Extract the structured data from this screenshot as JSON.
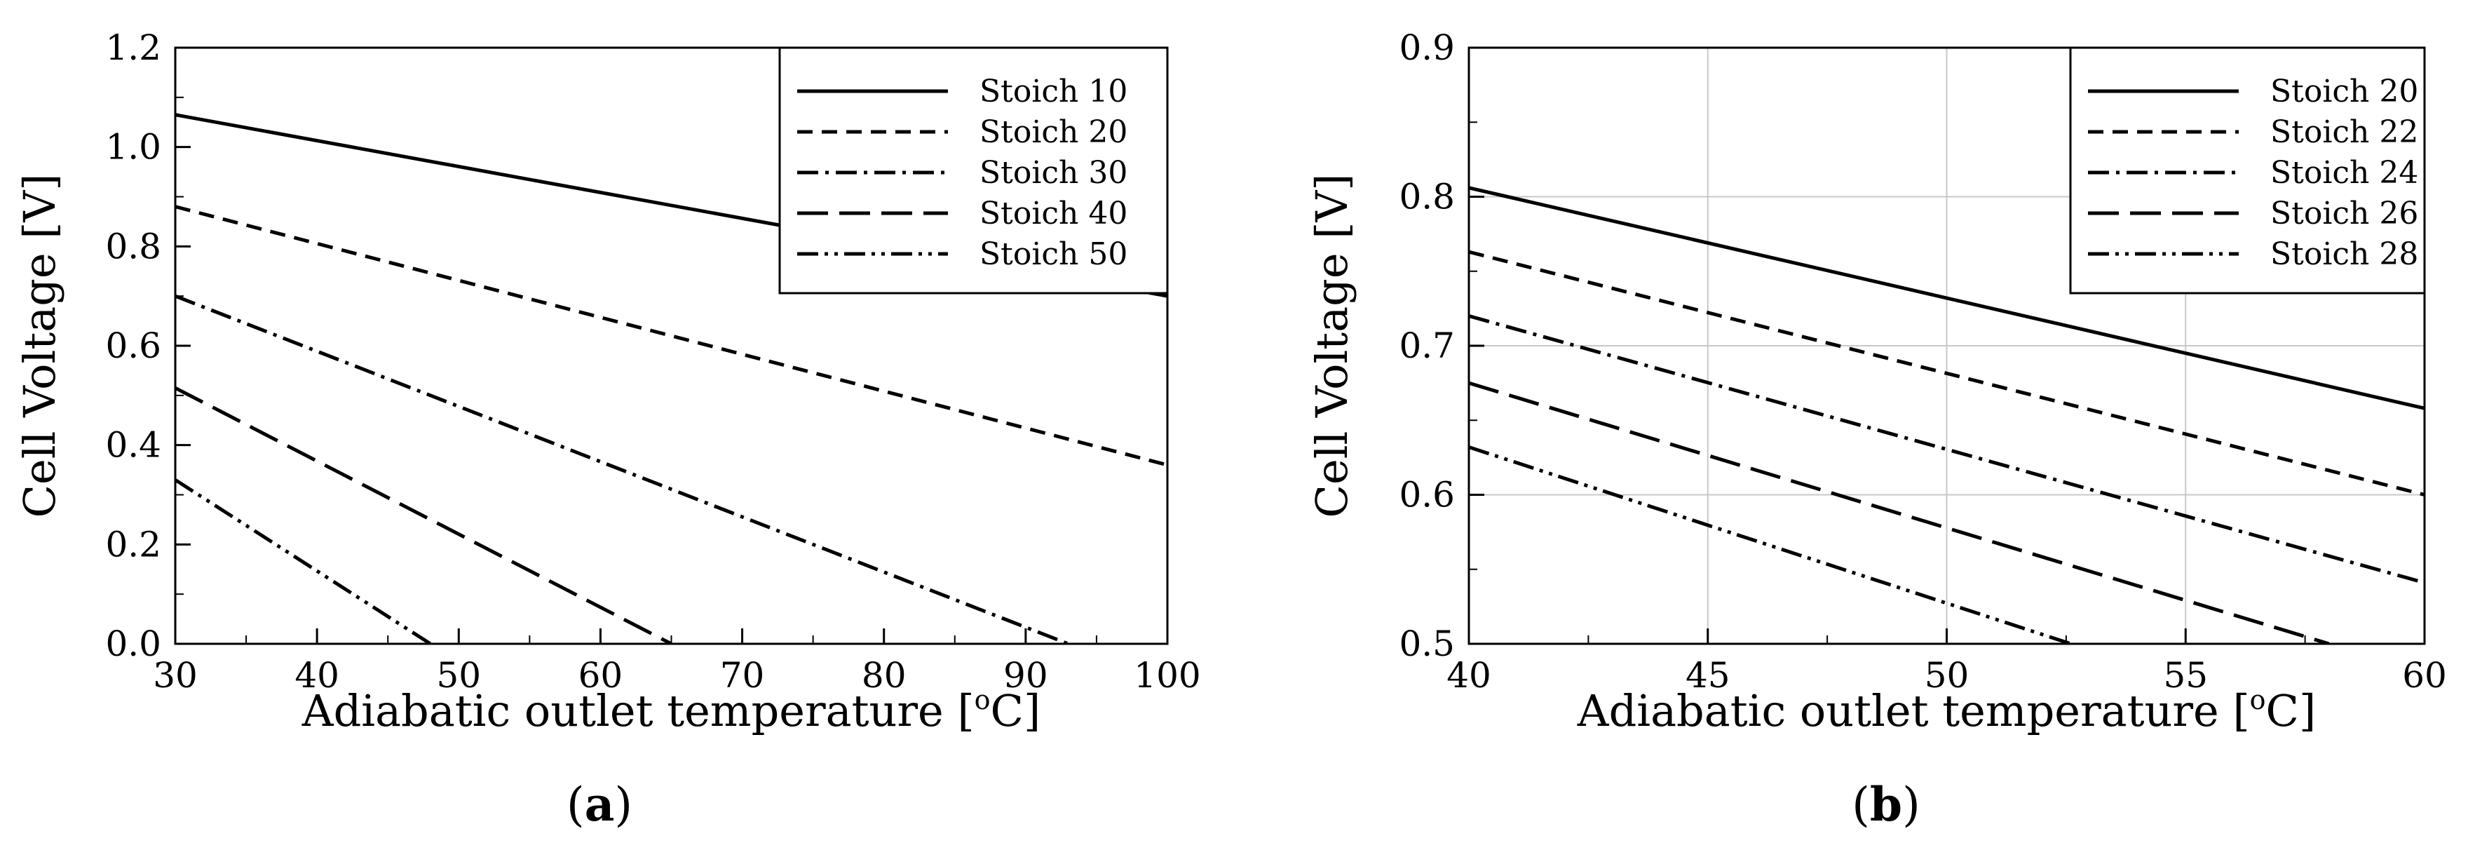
{
  "chart_data": [
    {
      "type": "line",
      "panel_label": "a",
      "xlabel": "Adiabatic outlet temperature [",
      "xunit_sup": "o",
      "xunit_tail": "C]",
      "ylabel": "Cell Voltage [V]",
      "xlim": [
        30,
        100
      ],
      "ylim": [
        0,
        1.2
      ],
      "xticks": [
        30,
        40,
        50,
        60,
        70,
        80,
        90,
        100
      ],
      "yticks": [
        0,
        0.2,
        0.4,
        0.6,
        0.8,
        1.0,
        1.2
      ],
      "ytick_labels": [
        "0.0",
        "0.2",
        "0.4",
        "0.6",
        "0.8",
        "1.0",
        "1.2"
      ],
      "grid": false,
      "legend_position": "top-right",
      "series": [
        {
          "name": "Stoich 10",
          "style": "solid",
          "x": [
            30,
            100
          ],
          "y": [
            1.065,
            0.7
          ]
        },
        {
          "name": "Stoich 20",
          "style": "dashed",
          "x": [
            30,
            100
          ],
          "y": [
            0.88,
            0.36
          ]
        },
        {
          "name": "Stoich 30",
          "style": "dash-dot",
          "x": [
            30,
            93
          ],
          "y": [
            0.7,
            0.0
          ]
        },
        {
          "name": "Stoich 40",
          "style": "long-dash",
          "x": [
            30,
            65
          ],
          "y": [
            0.515,
            0.0
          ]
        },
        {
          "name": "Stoich 50",
          "style": "dash-dot-dot",
          "x": [
            30,
            48
          ],
          "y": [
            0.33,
            0.0
          ]
        }
      ]
    },
    {
      "type": "line",
      "panel_label": "b",
      "xlabel": "Adiabatic outlet temperature [",
      "xunit_sup": "o",
      "xunit_tail": "C]",
      "ylabel": "Cell Voltage [V]",
      "xlim": [
        40,
        60
      ],
      "ylim": [
        0.5,
        0.9
      ],
      "xticks": [
        40,
        45,
        50,
        55,
        60
      ],
      "yticks": [
        0.5,
        0.6,
        0.7,
        0.8,
        0.9
      ],
      "ytick_labels": [
        "0.5",
        "0.6",
        "0.7",
        "0.8",
        "0.9"
      ],
      "grid": true,
      "legend_position": "top-right",
      "series": [
        {
          "name": "Stoich 20",
          "style": "solid",
          "x": [
            40,
            60
          ],
          "y": [
            0.806,
            0.658
          ]
        },
        {
          "name": "Stoich 22",
          "style": "dashed",
          "x": [
            40,
            60
          ],
          "y": [
            0.763,
            0.6
          ]
        },
        {
          "name": "Stoich 24",
          "style": "dash-dot",
          "x": [
            40,
            60
          ],
          "y": [
            0.72,
            0.541
          ]
        },
        {
          "name": "Stoich 26",
          "style": "long-dash",
          "x": [
            40,
            58
          ],
          "y": [
            0.675,
            0.5
          ]
        },
        {
          "name": "Stoich 28",
          "style": "dash-dot-dot",
          "x": [
            40,
            52.6
          ],
          "y": [
            0.632,
            0.5
          ]
        }
      ]
    }
  ]
}
